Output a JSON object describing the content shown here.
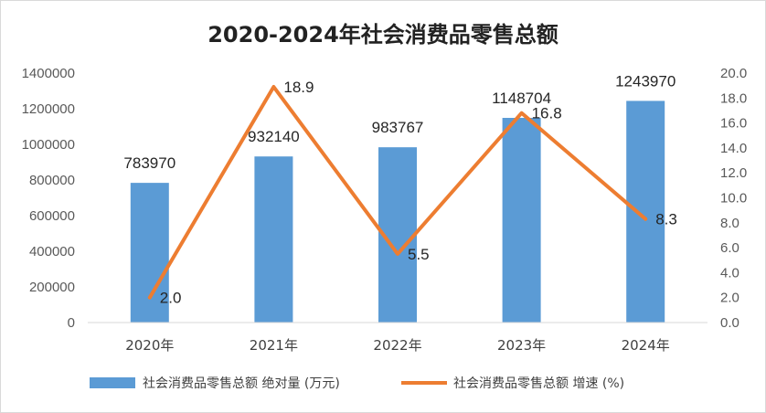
{
  "chart_data": {
    "type": "bar",
    "title": "2020-2024年社会消费品零售总额",
    "categories": [
      "2020年",
      "2021年",
      "2022年",
      "2023年",
      "2024年"
    ],
    "series": [
      {
        "name": "社会消费品零售总额 绝对量 (万元)",
        "type": "bar",
        "axis": "left",
        "color": "#5b9bd5",
        "values": [
          783970,
          932140,
          983767,
          1148704,
          1243970
        ],
        "labels": [
          "783970",
          "932140",
          "983767",
          "1148704",
          "1243970"
        ]
      },
      {
        "name": "社会消费品零售总额 增速 (%)",
        "type": "line",
        "axis": "right",
        "color": "#ed7d31",
        "values": [
          2.0,
          18.9,
          5.5,
          16.8,
          8.3
        ],
        "labels": [
          "2.0",
          "18.9",
          "5.5",
          "16.8",
          "8.3"
        ]
      }
    ],
    "y_left": {
      "min": 0,
      "max": 1400000,
      "step": 200000,
      "ticks": [
        "0",
        "200000",
        "400000",
        "600000",
        "800000",
        "1000000",
        "1200000",
        "1400000"
      ]
    },
    "y_right": {
      "min": 0,
      "max": 20,
      "step": 2,
      "ticks": [
        "0.0",
        "2.0",
        "4.0",
        "6.0",
        "8.0",
        "10.0",
        "12.0",
        "14.0",
        "16.0",
        "18.0",
        "20.0"
      ]
    },
    "grid": false,
    "legend_position": "bottom"
  }
}
